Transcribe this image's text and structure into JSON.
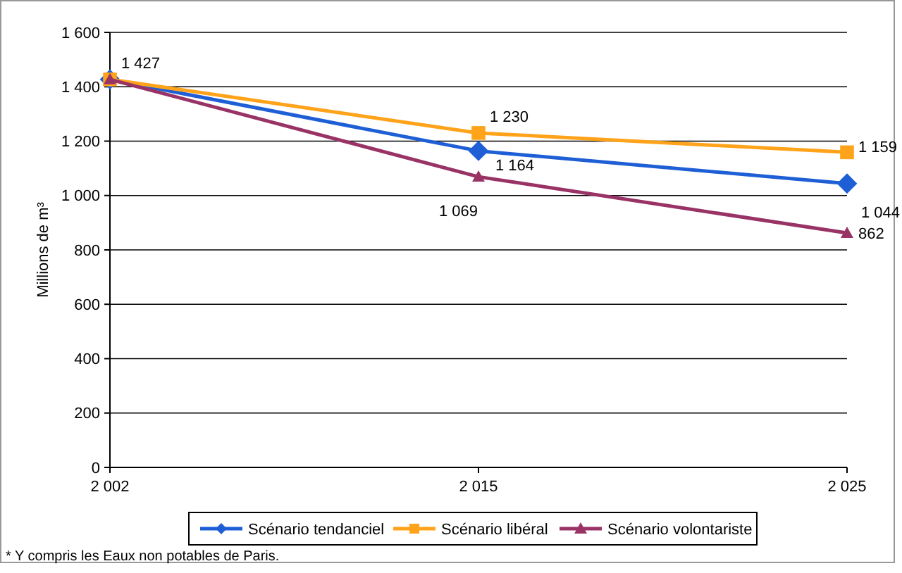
{
  "chart_data": {
    "type": "line",
    "ylabel": "Millions de m³",
    "categories": [
      "2 002",
      "2 015",
      "2 025"
    ],
    "series": [
      {
        "name": "Scénario tendanciel",
        "color": "#1f5fd6",
        "marker": "diamond",
        "values": [
          1427,
          1164,
          1044
        ],
        "value_labels": [
          "1 427",
          "1 164",
          "1 044"
        ]
      },
      {
        "name": "Scénario libéral",
        "color": "#ffa31a",
        "marker": "square",
        "values": [
          1427,
          1230,
          1159
        ],
        "value_labels": [
          null,
          "1 230",
          "1 159"
        ]
      },
      {
        "name": "Scénario volontariste",
        "color": "#993366",
        "marker": "triangle",
        "values": [
          1427,
          1069,
          862
        ],
        "value_labels": [
          null,
          "1 069",
          "862"
        ]
      }
    ],
    "ylim": [
      0,
      1600
    ],
    "yticks": [
      0,
      200,
      400,
      600,
      800,
      {
        "value": 1000,
        "label": "1 000"
      },
      {
        "value": 1200,
        "label": "1 200"
      },
      {
        "value": 1400,
        "label": "1 400"
      },
      {
        "value": 1600,
        "label": "1 600"
      }
    ],
    "grid": "y",
    "legend": "bottom",
    "line_style": "solid",
    "annotations": [
      "* Y compris les Eaux non potables de Paris."
    ]
  }
}
